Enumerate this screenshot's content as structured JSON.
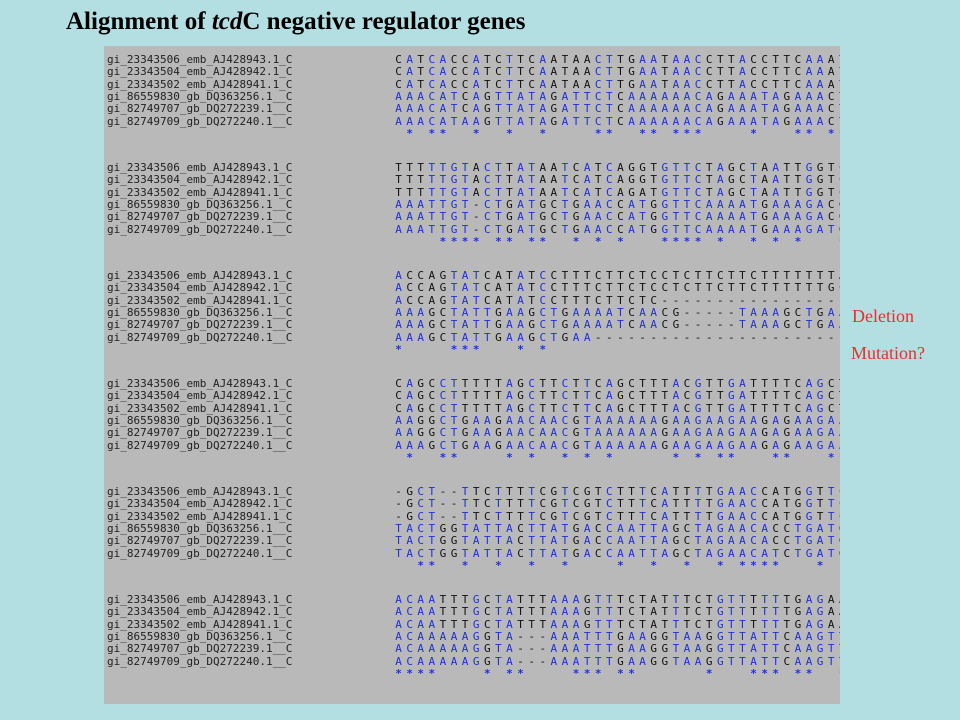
{
  "title": {
    "pre": "Alignment of ",
    "italic": "tcd",
    "post": "C negative regulator genes"
  },
  "annotations": [
    "Deletion",
    "Mutation?"
  ],
  "names": [
    "gi_23343506_emb_AJ428943.1_C",
    "gi_23343504_emb_AJ428942.1_C",
    "gi_23343502_emb_AJ428941.1_C",
    "gi_86559830_gb_DQ363256.1__C",
    "gi_82749707_gb_DQ272239.1__C",
    "gi_82749709_gb_DQ272240.1__C"
  ],
  "blocks": [
    {
      "seqs": [
        "CATCACCATCTTCAATAACTTGAATAACCTTACCTTCAAATTT---TACC",
        "CATCACCATCTTCAATAACTTGAATAACCTTACCTTCAAATTT---TACC",
        "CATCACCATCTTCAATAACTTGAATAACCTTACCTTCAAATTT---TACC",
        "AAACATCAGTTATAGATTCTCAAAAAACAGAAATAGAAACTTTAAATAGC",
        "AAACATCAGTTATAGATTCTCAAAAAACAGAAATAGAAACTTTAAATAGC",
        "AAACATAAGTTATAGATTCTCAAAAAACAGAAATAGAAACTTTAAATAGC"
      ],
      "stars": " * **  *  *  *    **  ** ***    *   ** ***   ** *"
    },
    {
      "seqs": [
        "TTTTTGTACTTATAATCATCAGGTGTTCTAGCTAATTGGTCATAAGTAAT",
        "TTTTTGTACTTATAATCATCAGGTGTTCTAGCTAATTGGTCATAAGTAAT",
        "TTTTTGTACTTATAATCATCAGATGTTCTAGCTAATTGGTCA-AAGTAAT",
        "AAATTGT-CTGATGCTGAACCATGGTTCAAAATGAAAGACGACGAA-AAG",
        "AAATTGT-CTGATGCTGAACCATGGTTCAAAATGAAAGACGACGAA-AAG",
        "AAATTGT-CTGATGCTGAACCATGGTTCAAAATGAAAGATGACGAA-AAG"
      ],
      "stars": "    **** ** **  * * *   **** *  * * *   *  *  * **"
    },
    {
      "seqs": [
        "ACCAGTATCATATCCTTTCTTCTCCTCTTCTTCTTTTTTTACGTTGTTCTT",
        "ACCAGTATCATATCCTTTCTTCTCCTCTTCTTCTTTTTTGCGTTGTTCTT",
        "ACCAGTATCATATCCTTTCTTCTC--------------------TTCTT",
        "AAAGCTATTGAAGCTGAAAATCAACG-----TAAAGCTGAAGAAGCTAAA",
        "AAAGCTATTGAAGCTGAAAATCAACG-----TAAAGCTGAAGAAGCTAAA",
        "AAAGCTATTGAAGCTGAA------------------------GAAGCTAAG"
      ],
      "stars": "*    ***   * *                                *"
    },
    {
      "seqs": [
        "CAGCCTTTTTAGCTTCTTCAGCTTTACGTTGATTTTCAGCTTCAATA---",
        "CAGCCTTTTTAGCTTCTTCAGCTTTACGTTGATTTTCAGCTTCAATA---",
        "CAGCCTTTTTAGCTTCTTCAGCTTTACGTTGATTTTCAGCTTCAATA---",
        "AAGGCTGAAGAACAACGTAAAAAAGAAGAAGAAGAGAAGAAAGGATATGA",
        "AAGGCTGAAGAACAACGTAAAAAAGAAGAAGAAGAGAAGAAAGGATATGA",
        "AAAGCTGAAGAACAACGTAAAAAAGAAGAAGAAGAGAAGAAAGGATATGA"
      ],
      "stars": " *  **    * *  * * *     * * **   **   ***"
    },
    {
      "seqs": [
        "-GCT--TTCTTTTCGTCGTCTTTCATTTTGAACCATGGTTCAGCATCAG-",
        "-GCT--TTCTTTTCGTCGTCTTTCATTTTGAACCATGGTTCAGCATCAG-",
        "-GCT--TTCTTTTCGTCGTCTTTCATTTTGAACCATGGTTCAGCATCAG-",
        "TACTGGTATTACTTATGACCAATTAGCTAGAACACCTGATGATTATAAGT",
        "TACTGGTATTACTTATGACCAATTAGCTAGAACACCTGATGATTATAAGT",
        "TACTGGTATTACTTATGACCAATTAGCTAGAACATCTGATGATTATAAGT"
      ],
      "stars": "  **  *  *  *  *    *  *  *  * ****   *  *  * ** **"
    },
    {
      "seqs": [
        "ACAATTTGCTATTTAAAGTTTCTATTTCTGTTTTTTGAGAATCTATAACT",
        "ACAATTTGCTATTTAAAGTTTCTATTTCTGTTTTTTGAGAATCTATAACT",
        "ACAATTTGCTATTTAAAGTTTCTATTTCTGTTTTTTGAGAATCTATAACT",
        "ACAAAAAGGTA---AAATTTGAAGGTAAGGTTATTCAAGTTATTGAAGAT",
        "ACAAAAAGGTA---AAATTTGAAGGTAAGGTTATTCAAGTTATTGAAGAT",
        "ACAAAAAGGTA---AAATTTGAAGGTAAGGTTATTCAAGTTATTGAAGAT"
      ],
      "stars": "****    * **    *** **      *   *** **  **   *  * *"
    }
  ]
}
